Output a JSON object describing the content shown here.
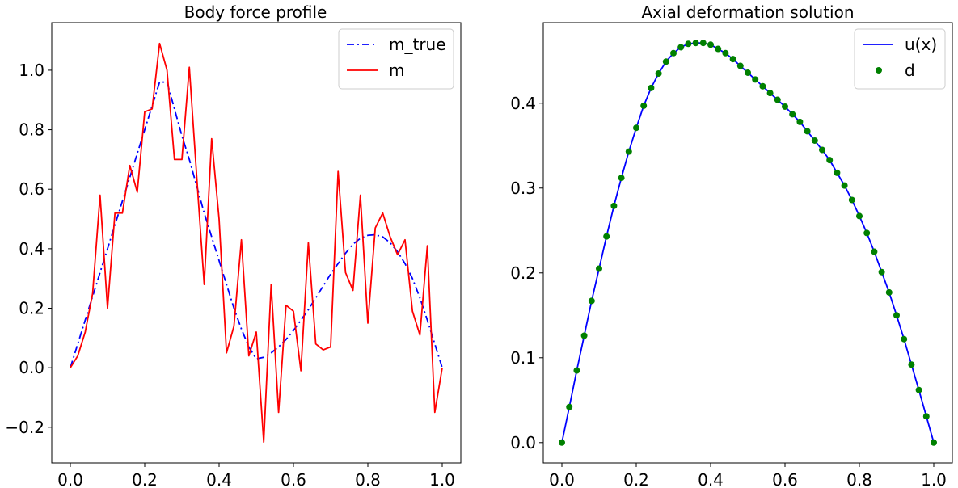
{
  "chart_data": [
    {
      "type": "line",
      "title": "Body force profile",
      "xlabel": "",
      "ylabel": "",
      "xlim": [
        -0.05,
        1.05
      ],
      "ylim": [
        -0.32,
        1.16
      ],
      "xticks": [
        0.0,
        0.2,
        0.4,
        0.6,
        0.8,
        1.0
      ],
      "xtick_labels": [
        "0.0",
        "0.2",
        "0.4",
        "0.6",
        "0.8",
        "1.0"
      ],
      "yticks": [
        -0.2,
        0.0,
        0.2,
        0.4,
        0.6,
        0.8,
        1.0
      ],
      "ytick_labels": [
        "−0.2",
        "0.0",
        "0.2",
        "0.4",
        "0.6",
        "0.8",
        "1.0"
      ],
      "legend_position": "top-right",
      "grid": false,
      "series": [
        {
          "name": "m_true",
          "color": "#0000ff",
          "style": "dashdot",
          "x": [
            0.0,
            0.02,
            0.04,
            0.06,
            0.08,
            0.1,
            0.12,
            0.14,
            0.16,
            0.18,
            0.2,
            0.22,
            0.24,
            0.26,
            0.28,
            0.3,
            0.32,
            0.34,
            0.36,
            0.38,
            0.4,
            0.42,
            0.44,
            0.46,
            0.48,
            0.5,
            0.52,
            0.54,
            0.56,
            0.58,
            0.6,
            0.62,
            0.64,
            0.66,
            0.68,
            0.7,
            0.72,
            0.74,
            0.76,
            0.78,
            0.8,
            0.82,
            0.84,
            0.86,
            0.88,
            0.9,
            0.92,
            0.94,
            0.96,
            0.98,
            1.0
          ],
          "values": [
            0.0,
            0.08,
            0.16,
            0.24,
            0.32,
            0.4,
            0.48,
            0.56,
            0.64,
            0.72,
            0.8,
            0.88,
            0.96,
            0.96,
            0.87,
            0.78,
            0.7,
            0.61,
            0.52,
            0.44,
            0.36,
            0.28,
            0.2,
            0.13,
            0.07,
            0.03,
            0.035,
            0.05,
            0.07,
            0.095,
            0.125,
            0.16,
            0.195,
            0.235,
            0.275,
            0.315,
            0.35,
            0.385,
            0.415,
            0.435,
            0.445,
            0.447,
            0.44,
            0.42,
            0.39,
            0.35,
            0.3,
            0.235,
            0.16,
            0.08,
            0.0
          ]
        },
        {
          "name": "m",
          "color": "#ff0000",
          "style": "solid",
          "x": [
            0.0,
            0.02,
            0.04,
            0.06,
            0.08,
            0.1,
            0.12,
            0.14,
            0.16,
            0.18,
            0.2,
            0.22,
            0.24,
            0.26,
            0.28,
            0.3,
            0.32,
            0.34,
            0.36,
            0.38,
            0.4,
            0.42,
            0.44,
            0.46,
            0.48,
            0.5,
            0.52,
            0.54,
            0.56,
            0.58,
            0.6,
            0.62,
            0.64,
            0.66,
            0.68,
            0.7,
            0.72,
            0.74,
            0.76,
            0.78,
            0.8,
            0.82,
            0.84,
            0.86,
            0.88,
            0.9,
            0.92,
            0.94,
            0.96,
            0.98,
            1.0
          ],
          "values": [
            0.0,
            0.04,
            0.12,
            0.25,
            0.58,
            0.2,
            0.52,
            0.52,
            0.68,
            0.59,
            0.86,
            0.87,
            1.09,
            1.0,
            0.7,
            0.7,
            1.01,
            0.64,
            0.28,
            0.77,
            0.5,
            0.05,
            0.14,
            0.43,
            0.04,
            0.12,
            -0.25,
            0.28,
            -0.15,
            0.21,
            0.19,
            -0.01,
            0.42,
            0.08,
            0.06,
            0.07,
            0.66,
            0.32,
            0.26,
            0.58,
            0.15,
            0.47,
            0.52,
            0.44,
            0.38,
            0.43,
            0.19,
            0.11,
            0.41,
            -0.15,
            0.0
          ]
        }
      ]
    },
    {
      "type": "line",
      "title": "Axial deformation solution",
      "xlabel": "",
      "ylabel": "",
      "xlim": [
        -0.05,
        1.05
      ],
      "ylim": [
        -0.024,
        0.495
      ],
      "xticks": [
        0.0,
        0.2,
        0.4,
        0.6,
        0.8,
        1.0
      ],
      "xtick_labels": [
        "0.0",
        "0.2",
        "0.4",
        "0.6",
        "0.8",
        "1.0"
      ],
      "yticks": [
        0.0,
        0.1,
        0.2,
        0.3,
        0.4
      ],
      "ytick_labels": [
        "0.0",
        "0.1",
        "0.2",
        "0.3",
        "0.4"
      ],
      "legend_position": "top-right",
      "grid": false,
      "series": [
        {
          "name": "u(x)",
          "color": "#0000ff",
          "style": "solid",
          "x": [
            0.0,
            0.02,
            0.04,
            0.06,
            0.08,
            0.1,
            0.12,
            0.14,
            0.16,
            0.18,
            0.2,
            0.22,
            0.24,
            0.26,
            0.28,
            0.3,
            0.32,
            0.34,
            0.36,
            0.38,
            0.4,
            0.42,
            0.44,
            0.46,
            0.48,
            0.5,
            0.52,
            0.54,
            0.56,
            0.58,
            0.6,
            0.62,
            0.64,
            0.66,
            0.68,
            0.7,
            0.72,
            0.74,
            0.76,
            0.78,
            0.8,
            0.82,
            0.84,
            0.86,
            0.88,
            0.9,
            0.92,
            0.94,
            0.96,
            0.98,
            1.0
          ],
          "values": [
            0.0,
            0.042,
            0.085,
            0.126,
            0.167,
            0.205,
            0.243,
            0.279,
            0.312,
            0.343,
            0.371,
            0.397,
            0.418,
            0.435,
            0.449,
            0.459,
            0.466,
            0.47,
            0.471,
            0.471,
            0.469,
            0.464,
            0.459,
            0.452,
            0.444,
            0.436,
            0.428,
            0.42,
            0.412,
            0.404,
            0.396,
            0.387,
            0.378,
            0.367,
            0.356,
            0.345,
            0.333,
            0.318,
            0.303,
            0.286,
            0.267,
            0.247,
            0.225,
            0.201,
            0.177,
            0.15,
            0.122,
            0.092,
            0.062,
            0.031,
            0.0
          ]
        },
        {
          "name": "d",
          "color": "#008000",
          "style": "markers",
          "x": [
            0.0,
            0.02,
            0.04,
            0.06,
            0.08,
            0.1,
            0.12,
            0.14,
            0.16,
            0.18,
            0.2,
            0.22,
            0.24,
            0.26,
            0.28,
            0.3,
            0.32,
            0.34,
            0.36,
            0.38,
            0.4,
            0.42,
            0.44,
            0.46,
            0.48,
            0.5,
            0.52,
            0.54,
            0.56,
            0.58,
            0.6,
            0.62,
            0.64,
            0.66,
            0.68,
            0.7,
            0.72,
            0.74,
            0.76,
            0.78,
            0.8,
            0.82,
            0.84,
            0.86,
            0.88,
            0.9,
            0.92,
            0.94,
            0.96,
            0.98,
            1.0
          ],
          "values": [
            0.0,
            0.042,
            0.085,
            0.126,
            0.167,
            0.205,
            0.243,
            0.279,
            0.312,
            0.343,
            0.371,
            0.397,
            0.418,
            0.435,
            0.449,
            0.459,
            0.466,
            0.47,
            0.471,
            0.471,
            0.469,
            0.464,
            0.459,
            0.452,
            0.444,
            0.436,
            0.428,
            0.42,
            0.412,
            0.404,
            0.396,
            0.387,
            0.378,
            0.367,
            0.356,
            0.345,
            0.333,
            0.318,
            0.303,
            0.286,
            0.267,
            0.247,
            0.225,
            0.201,
            0.177,
            0.15,
            0.122,
            0.092,
            0.062,
            0.031,
            0.0
          ]
        }
      ]
    }
  ]
}
